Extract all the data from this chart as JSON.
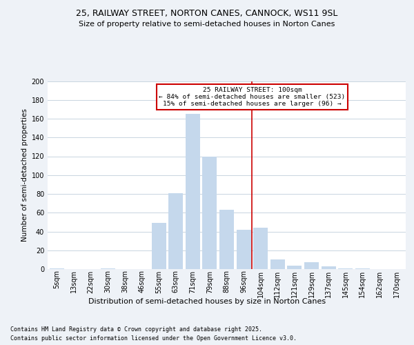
{
  "title1": "25, RAILWAY STREET, NORTON CANES, CANNOCK, WS11 9SL",
  "title2": "Size of property relative to semi-detached houses in Norton Canes",
  "xlabel": "Distribution of semi-detached houses by size in Norton Canes",
  "ylabel": "Number of semi-detached properties",
  "footer1": "Contains HM Land Registry data © Crown copyright and database right 2025.",
  "footer2": "Contains public sector information licensed under the Open Government Licence v3.0.",
  "annotation_title": "25 RAILWAY STREET: 100sqm",
  "annotation_line1": "← 84% of semi-detached houses are smaller (523)",
  "annotation_line2": "15% of semi-detached houses are larger (96) →",
  "bar_color": "#c5d8ec",
  "vline_color": "#cc0000",
  "annotation_box_edgecolor": "#cc0000",
  "categories": [
    "5sqm",
    "13sqm",
    "22sqm",
    "30sqm",
    "38sqm",
    "46sqm",
    "55sqm",
    "63sqm",
    "71sqm",
    "79sqm",
    "88sqm",
    "96sqm",
    "104sqm",
    "112sqm",
    "121sqm",
    "129sqm",
    "137sqm",
    "145sqm",
    "154sqm",
    "162sqm",
    "170sqm"
  ],
  "values": [
    1,
    0,
    0,
    1,
    0,
    0,
    49,
    81,
    165,
    120,
    63,
    42,
    44,
    10,
    4,
    7,
    3,
    1,
    1,
    0,
    0
  ],
  "vline_x": 11.5,
  "ylim": [
    0,
    200
  ],
  "yticks": [
    0,
    20,
    40,
    60,
    80,
    100,
    120,
    140,
    160,
    180,
    200
  ],
  "background_color": "#eef2f7",
  "plot_bg_color": "#ffffff",
  "grid_color": "#c8d4e0",
  "title_fontsize": 9,
  "subtitle_fontsize": 8,
  "xlabel_fontsize": 8,
  "ylabel_fontsize": 7.5,
  "tick_fontsize": 7,
  "footer_fontsize": 6
}
